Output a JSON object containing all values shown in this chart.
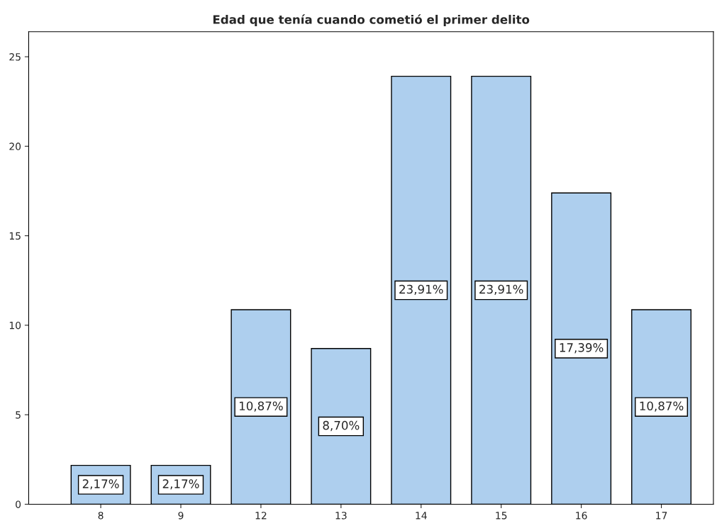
{
  "chart_data": {
    "type": "bar",
    "title": "Edad que tenía cuando cometió el primer delito",
    "categories": [
      "8",
      "9",
      "12",
      "13",
      "14",
      "15",
      "16",
      "17"
    ],
    "values": [
      2.17,
      2.17,
      10.87,
      8.7,
      23.91,
      23.91,
      17.39,
      10.87
    ],
    "value_labels": [
      "2,17%",
      "2,17%",
      "10,87%",
      "8,70%",
      "23,91%",
      "23,91%",
      "17,39%",
      "10,87%"
    ],
    "color": "#aecfee",
    "ylim": [
      0,
      26.4
    ],
    "yticks": [
      0,
      5,
      10,
      15,
      20,
      25
    ],
    "grid": false
  }
}
